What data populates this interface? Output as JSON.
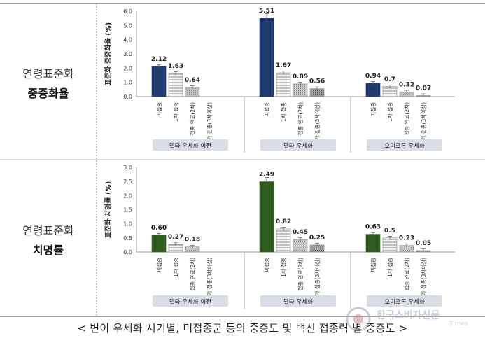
{
  "rows": [
    {
      "label_top": "연령표준화",
      "label_bottom": "중증화율"
    },
    {
      "label_top": "연령표준화",
      "label_bottom": "치명률"
    }
  ],
  "caption": "< 변이 우세화 시기별, 미접종군 등의 중증도 및 백신 접종력 별 중증도 >",
  "watermark": {
    "name": "한국소비자신문",
    "sub": "Times"
  },
  "colors": {
    "severe_unvax": "#1f3a6e",
    "fatal_unvax": "#2e5d1f",
    "period_bg": "#d9dde6",
    "divider": "#9aa0a6"
  },
  "chart_data": [
    {
      "type": "bar",
      "ylabel": "표준화 중증화율 (%)",
      "ylim": [
        0,
        6
      ],
      "yticks": [
        "0.0",
        "1.0",
        "2.0",
        "3.0",
        "4.0",
        "5.0",
        "6.0"
      ],
      "categories": [
        "미접종",
        "1차 접종",
        "접종 완료(2차)",
        "추가 접종(3차이상)"
      ],
      "periods": [
        {
          "name": "델타 우세화 이전",
          "values": [
            2.12,
            1.63,
            0.64,
            null
          ],
          "labels": [
            "2.12",
            "1.63",
            "0.64",
            ""
          ]
        },
        {
          "name": "델타 우세화",
          "values": [
            5.51,
            1.67,
            0.89,
            0.56
          ],
          "labels": [
            "5.51",
            "1.67",
            "0.89",
            "0.56"
          ]
        },
        {
          "name": "오미크론 우세화",
          "values": [
            0.94,
            0.7,
            0.32,
            0.07
          ],
          "labels": [
            "0.94",
            "0.7",
            "0.32",
            "0.07"
          ]
        }
      ]
    },
    {
      "type": "bar",
      "ylabel": "표준화 치명률 (%)",
      "ylim": [
        0,
        3
      ],
      "yticks": [
        "0.0",
        "0.5",
        "1.0",
        "1.5",
        "2.0",
        "2.5",
        "3.0"
      ],
      "categories": [
        "미접종",
        "1차 접종",
        "접종 완료(2차)",
        "추가 접종(3차이상)"
      ],
      "periods": [
        {
          "name": "델타 우세화 이전",
          "values": [
            0.6,
            0.27,
            0.18,
            null
          ],
          "labels": [
            "0.60",
            "0.27",
            "0.18",
            ""
          ]
        },
        {
          "name": "델타 우세화",
          "values": [
            2.49,
            0.82,
            0.45,
            0.25
          ],
          "labels": [
            "2.49",
            "0.82",
            "0.45",
            "0.25"
          ]
        },
        {
          "name": "오미크론 우세화",
          "values": [
            0.63,
            0.5,
            0.23,
            0.05
          ],
          "labels": [
            "0.63",
            "0.5",
            "0.23",
            "0.05"
          ]
        }
      ]
    }
  ]
}
